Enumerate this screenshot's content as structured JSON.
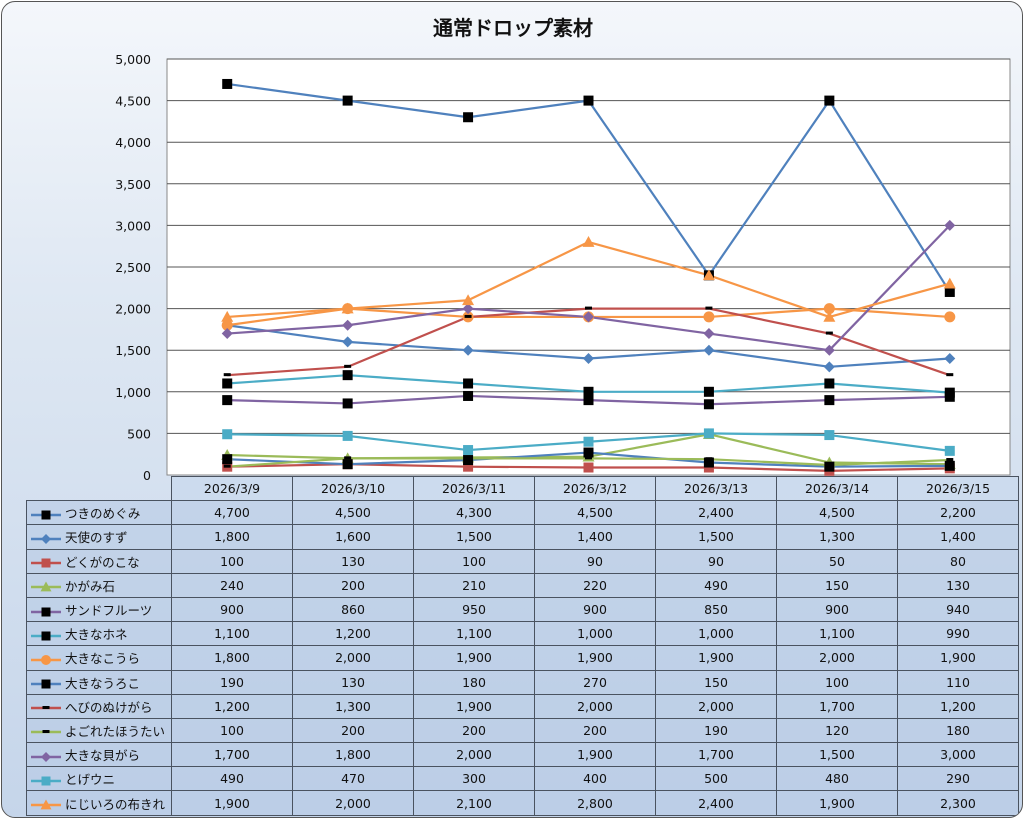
{
  "chart_data": {
    "type": "line",
    "title": "通常ドロップ素材",
    "xlabel": "",
    "ylabel": "",
    "ylim": [
      0,
      5000
    ],
    "yticks": [
      0,
      500,
      1000,
      1500,
      2000,
      2500,
      3000,
      3500,
      4000,
      4500,
      5000
    ],
    "ytick_labels": [
      "0",
      "500",
      "1,000",
      "1,500",
      "2,000",
      "2,500",
      "3,000",
      "3,500",
      "4,000",
      "4,500",
      "5,000"
    ],
    "grid": true,
    "legend": "data-table-left",
    "categories": [
      "2026/3/9",
      "2026/3/10",
      "2026/3/11",
      "2026/3/12",
      "2026/3/13",
      "2026/3/14",
      "2026/3/15"
    ],
    "series": [
      {
        "name": "つきのめぐみ",
        "values": [
          4700,
          4500,
          4300,
          4500,
          2400,
          4500,
          2200
        ],
        "display": [
          "4,700",
          "4,500",
          "4,300",
          "4,500",
          "2,400",
          "4,500",
          "2,200"
        ],
        "line_color": "#4F81BD",
        "marker": "square",
        "marker_color": "#000000"
      },
      {
        "name": "天使のすず",
        "values": [
          1800,
          1600,
          1500,
          1400,
          1500,
          1300,
          1400
        ],
        "display": [
          "1,800",
          "1,600",
          "1,500",
          "1,400",
          "1,500",
          "1,300",
          "1,400"
        ],
        "line_color": "#4F81BD",
        "marker": "diamond",
        "marker_color": "#4F81BD"
      },
      {
        "name": "どくがのこな",
        "values": [
          100,
          130,
          100,
          90,
          90,
          50,
          80
        ],
        "display": [
          "100",
          "130",
          "100",
          "90",
          "90",
          "50",
          "80"
        ],
        "line_color": "#C0504D",
        "marker": "square",
        "marker_color": "#C0504D"
      },
      {
        "name": "かがみ石",
        "values": [
          240,
          200,
          210,
          220,
          490,
          150,
          130
        ],
        "display": [
          "240",
          "200",
          "210",
          "220",
          "490",
          "150",
          "130"
        ],
        "line_color": "#9BBB59",
        "marker": "triangle",
        "marker_color": "#9BBB59"
      },
      {
        "name": "サンドフルーツ",
        "values": [
          900,
          860,
          950,
          900,
          850,
          900,
          940
        ],
        "display": [
          "900",
          "860",
          "950",
          "900",
          "850",
          "900",
          "940"
        ],
        "line_color": "#8064A2",
        "marker": "square",
        "marker_color": "#000000"
      },
      {
        "name": "大きなホネ",
        "values": [
          1100,
          1200,
          1100,
          1000,
          1000,
          1100,
          990
        ],
        "display": [
          "1,100",
          "1,200",
          "1,100",
          "1,000",
          "1,000",
          "1,100",
          "990"
        ],
        "line_color": "#4BACC6",
        "marker": "square",
        "marker_color": "#000000"
      },
      {
        "name": "大きなこうら",
        "values": [
          1800,
          2000,
          1900,
          1900,
          1900,
          2000,
          1900
        ],
        "display": [
          "1,800",
          "2,000",
          "1,900",
          "1,900",
          "1,900",
          "2,000",
          "1,900"
        ],
        "line_color": "#F79646",
        "marker": "circle",
        "marker_color": "#F79646"
      },
      {
        "name": "大きなうろこ",
        "values": [
          190,
          130,
          180,
          270,
          150,
          100,
          110
        ],
        "display": [
          "190",
          "130",
          "180",
          "270",
          "150",
          "100",
          "110"
        ],
        "line_color": "#4F81BD",
        "marker": "square",
        "marker_color": "#000000"
      },
      {
        "name": "へびのぬけがら",
        "values": [
          1200,
          1300,
          1900,
          2000,
          2000,
          1700,
          1200
        ],
        "display": [
          "1,200",
          "1,300",
          "1,900",
          "2,000",
          "2,000",
          "1,700",
          "1,200"
        ],
        "line_color": "#C0504D",
        "marker": "dash",
        "marker_color": "#000000"
      },
      {
        "name": "よごれたほうたい",
        "values": [
          100,
          200,
          200,
          200,
          190,
          120,
          180
        ],
        "display": [
          "100",
          "200",
          "200",
          "200",
          "190",
          "120",
          "180"
        ],
        "line_color": "#9BBB59",
        "marker": "dash",
        "marker_color": "#000000"
      },
      {
        "name": "大きな貝がら",
        "values": [
          1700,
          1800,
          2000,
          1900,
          1700,
          1500,
          3000
        ],
        "display": [
          "1,700",
          "1,800",
          "2,000",
          "1,900",
          "1,700",
          "1,500",
          "3,000"
        ],
        "line_color": "#8064A2",
        "marker": "diamond",
        "marker_color": "#8064A2"
      },
      {
        "name": "とげウニ",
        "values": [
          490,
          470,
          300,
          400,
          500,
          480,
          290
        ],
        "display": [
          "490",
          "470",
          "300",
          "400",
          "500",
          "480",
          "290"
        ],
        "line_color": "#4BACC6",
        "marker": "square",
        "marker_color": "#4BACC6"
      },
      {
        "name": "にじいろの布きれ",
        "values": [
          1900,
          2000,
          2100,
          2800,
          2400,
          1900,
          2300
        ],
        "display": [
          "1,900",
          "2,000",
          "2,100",
          "2,800",
          "2,400",
          "1,900",
          "2,300"
        ],
        "line_color": "#F79646",
        "marker": "triangle",
        "marker_color": "#F79646"
      }
    ]
  }
}
